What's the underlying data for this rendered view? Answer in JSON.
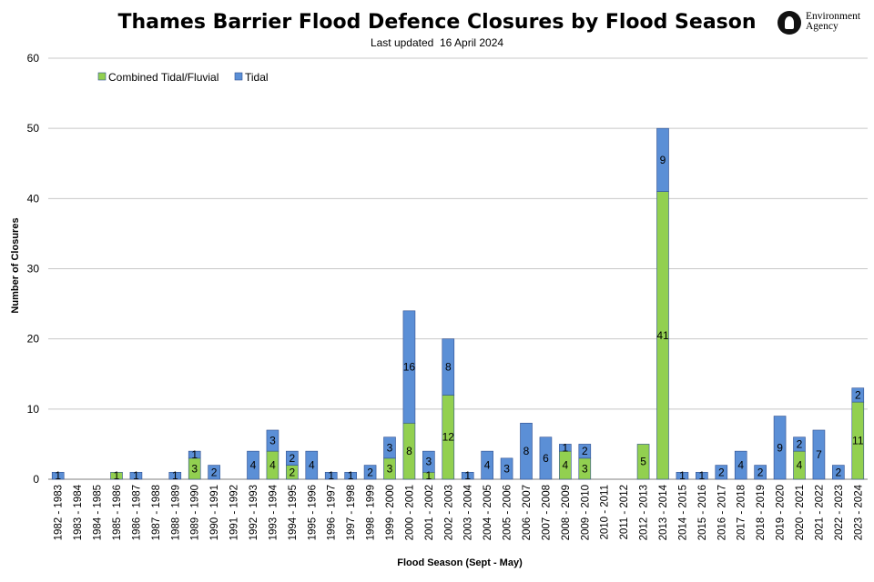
{
  "logo": {
    "line1": "Environment",
    "line2": "Agency"
  },
  "chart_data": {
    "type": "bar",
    "stacked": true,
    "title": "Thames Barrier Flood Defence Closures by Flood Season",
    "subtitle": "Last updated  16 April 2024",
    "xlabel": "Flood Season (Sept -  May)",
    "ylabel": "Number of Closures",
    "ylim": [
      0,
      60
    ],
    "yticks": [
      0,
      10,
      20,
      30,
      40,
      50,
      60
    ],
    "grid": true,
    "legend": "top-left",
    "categories": [
      "1982 - 1983",
      "1983 - 1984",
      "1984 - 1985",
      "1985 - 1986",
      "1986 - 1987",
      "1987 - 1988",
      "1988 - 1989",
      "1989 - 1990",
      "1990 - 1991",
      "1991 - 1992",
      "1992 - 1993",
      "1993 - 1994",
      "1994 - 1995",
      "1995 - 1996",
      "1996 - 1997",
      "1997 - 1998",
      "1998 - 1999",
      "1999 - 2000",
      "2000 - 2001",
      "2001 - 2002",
      "2002 - 2003",
      "2003 - 2004",
      "2004 - 2005",
      "2005 - 2006",
      "2006 - 2007",
      "2007 - 2008",
      "2008 - 2009",
      "2009 - 2010",
      "2010 - 2011",
      "2011 - 2012",
      "2012 - 2013",
      "2013 - 2014",
      "2014 - 2015",
      "2015 - 2016",
      "2016 - 2017",
      "2017 - 2018",
      "2018 - 2019",
      "2019 - 2020",
      "2020 - 2021",
      "2021 - 2022",
      "2022 - 2023",
      "2023 - 2024"
    ],
    "series": [
      {
        "name": "Combined Tidal/Fluvial",
        "color": "#92d050",
        "values": [
          0,
          0,
          0,
          1,
          0,
          0,
          0,
          3,
          0,
          0,
          0,
          4,
          2,
          0,
          0,
          0,
          0,
          3,
          8,
          1,
          12,
          0,
          0,
          0,
          0,
          0,
          4,
          3,
          0,
          0,
          5,
          41,
          0,
          0,
          0,
          0,
          0,
          0,
          4,
          0,
          0,
          11
        ]
      },
      {
        "name": "Tidal",
        "color": "#5b8fd6",
        "values": [
          1,
          0,
          0,
          0,
          1,
          0,
          1,
          1,
          2,
          0,
          4,
          3,
          2,
          4,
          1,
          1,
          2,
          3,
          16,
          3,
          8,
          1,
          4,
          3,
          8,
          6,
          1,
          2,
          0,
          0,
          0,
          9,
          1,
          1,
          2,
          4,
          2,
          9,
          2,
          7,
          2,
          2
        ]
      }
    ]
  }
}
